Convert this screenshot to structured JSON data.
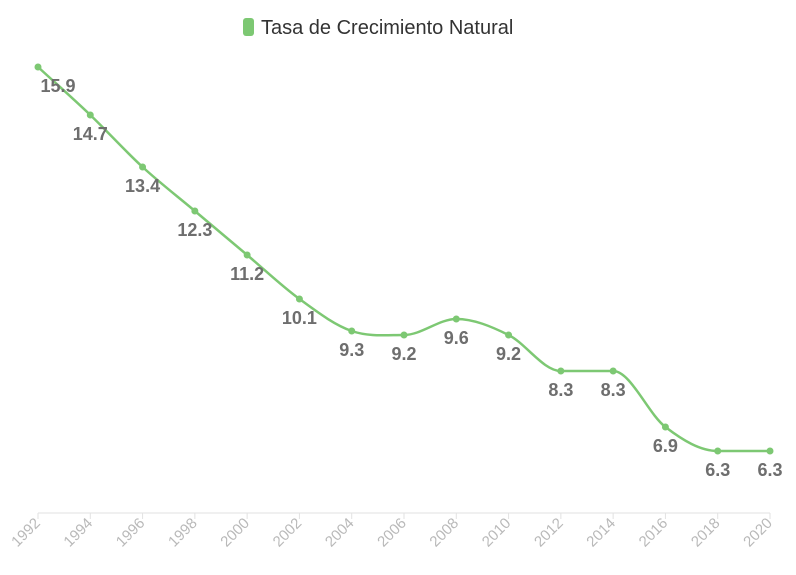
{
  "legend": {
    "position": "top-center"
  },
  "chart_data": {
    "type": "line",
    "title": "",
    "xlabel": "",
    "ylabel": "",
    "categories": [
      "1992",
      "1994",
      "1996",
      "1998",
      "2000",
      "2002",
      "2004",
      "2006",
      "2008",
      "2010",
      "2012",
      "2014",
      "2016",
      "2018",
      "2020"
    ],
    "series": [
      {
        "name": "Tasa de Crecimiento Natural",
        "color": "#7dc873",
        "values": [
          15.9,
          14.7,
          13.4,
          12.3,
          11.2,
          10.1,
          9.3,
          9.2,
          9.6,
          9.2,
          8.3,
          8.3,
          6.9,
          6.3,
          6.3
        ]
      }
    ],
    "ylim": [
      5.1,
      15.9
    ],
    "grid": false,
    "data_labels": true,
    "smooth": true
  }
}
